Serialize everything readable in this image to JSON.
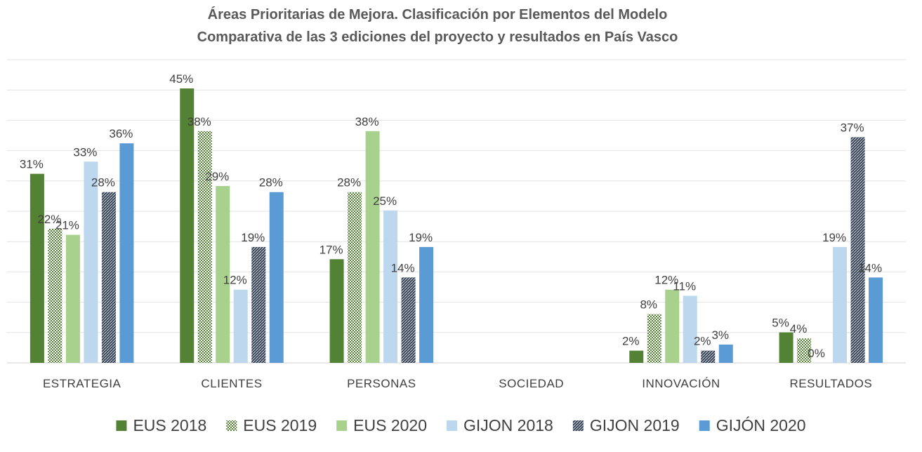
{
  "chart_data": {
    "type": "bar",
    "title": "Áreas Prioritarias de Mejora. Clasificación por Elementos del Modelo",
    "subtitle": "Comparativa de las 3 ediciones del proyecto y resultados en País Vasco",
    "categories": [
      "ESTRATEGIA",
      "CLIENTES",
      "PERSONAS",
      "SOCIEDAD",
      "INNOVACIÓN",
      "RESULTADOS"
    ],
    "ylim": [
      0,
      0.45
    ],
    "grid": true,
    "legend_position": "bottom",
    "series": [
      {
        "name": "EUS 2018",
        "color": "#548235",
        "pattern": "solid",
        "values": [
          0.31,
          0.45,
          0.17,
          null,
          0.02,
          0.05
        ],
        "labels": [
          "31%",
          "45%",
          "17%",
          "",
          "2%",
          "5%"
        ]
      },
      {
        "name": "EUS 2019",
        "color": "#548235",
        "pattern": "checker",
        "values": [
          0.22,
          0.38,
          0.28,
          null,
          0.08,
          0.04
        ],
        "labels": [
          "22%",
          "38%",
          "28%",
          "",
          "8%",
          "4%"
        ]
      },
      {
        "name": "EUS 2020",
        "color": "#a9d18e",
        "pattern": "solid",
        "values": [
          0.21,
          0.29,
          0.38,
          null,
          0.12,
          0
        ],
        "labels": [
          "21%",
          "29%",
          "38%",
          "",
          "12%",
          "0%"
        ]
      },
      {
        "name": "GIJON 2018",
        "color": "#bdd7ee",
        "pattern": "solid",
        "values": [
          0.33,
          0.12,
          0.25,
          null,
          0.11,
          0.19
        ],
        "labels": [
          "33%",
          "12%",
          "25%",
          "",
          "11%",
          "19%"
        ]
      },
      {
        "name": "GIJON 2019",
        "color": "#333f50",
        "pattern": "hatch",
        "values": [
          0.28,
          0.19,
          0.14,
          null,
          0.02,
          0.37
        ],
        "labels": [
          "28%",
          "19%",
          "14%",
          "",
          "2%",
          "37%"
        ]
      },
      {
        "name": "GIJÓN 2020",
        "color": "#5b9bd5",
        "pattern": "solid",
        "values": [
          0.36,
          0.28,
          0.19,
          null,
          0.03,
          0.14
        ],
        "labels": [
          "36%",
          "28%",
          "19%",
          "",
          "3%",
          "14%"
        ]
      }
    ]
  }
}
